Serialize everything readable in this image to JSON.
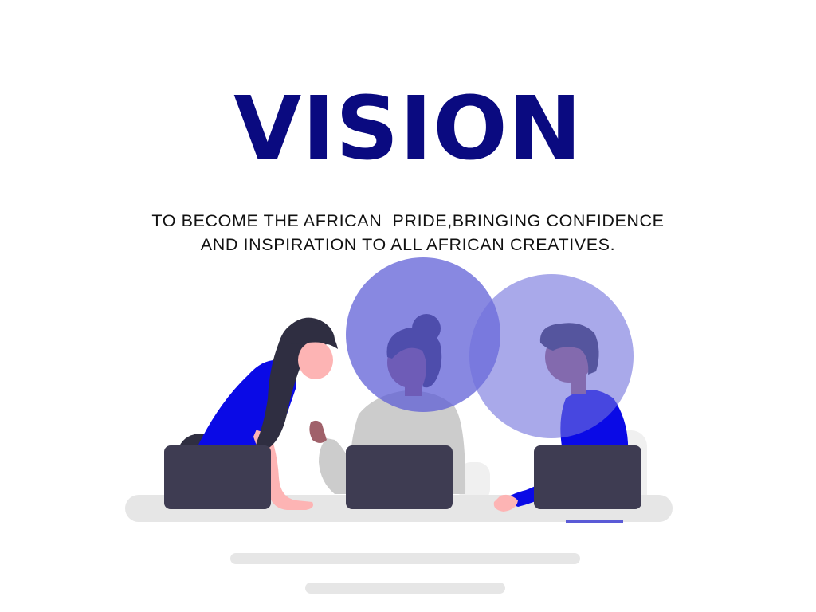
{
  "heading": {
    "title": "VISION",
    "color": "#0a0a80"
  },
  "statement": {
    "line1": "TO BECOME THE AFRICAN  PRIDE,BRINGING CONFIDENCE",
    "line2": "AND INSPIRATION TO ALL AFRICAN CREATIVES."
  },
  "illustration": {
    "subject": "three people working at laptops around a table",
    "colors": {
      "accent_blue": "#0a0ae6",
      "circle_left": "#5a5ad6",
      "circle_right": "#8a8ae4",
      "laptop": "#3e3c52",
      "skin": "#fdb4b4",
      "hair": "#2f2e41",
      "table": "#e6e6e6",
      "shirt_gray": "#cccccc"
    }
  }
}
